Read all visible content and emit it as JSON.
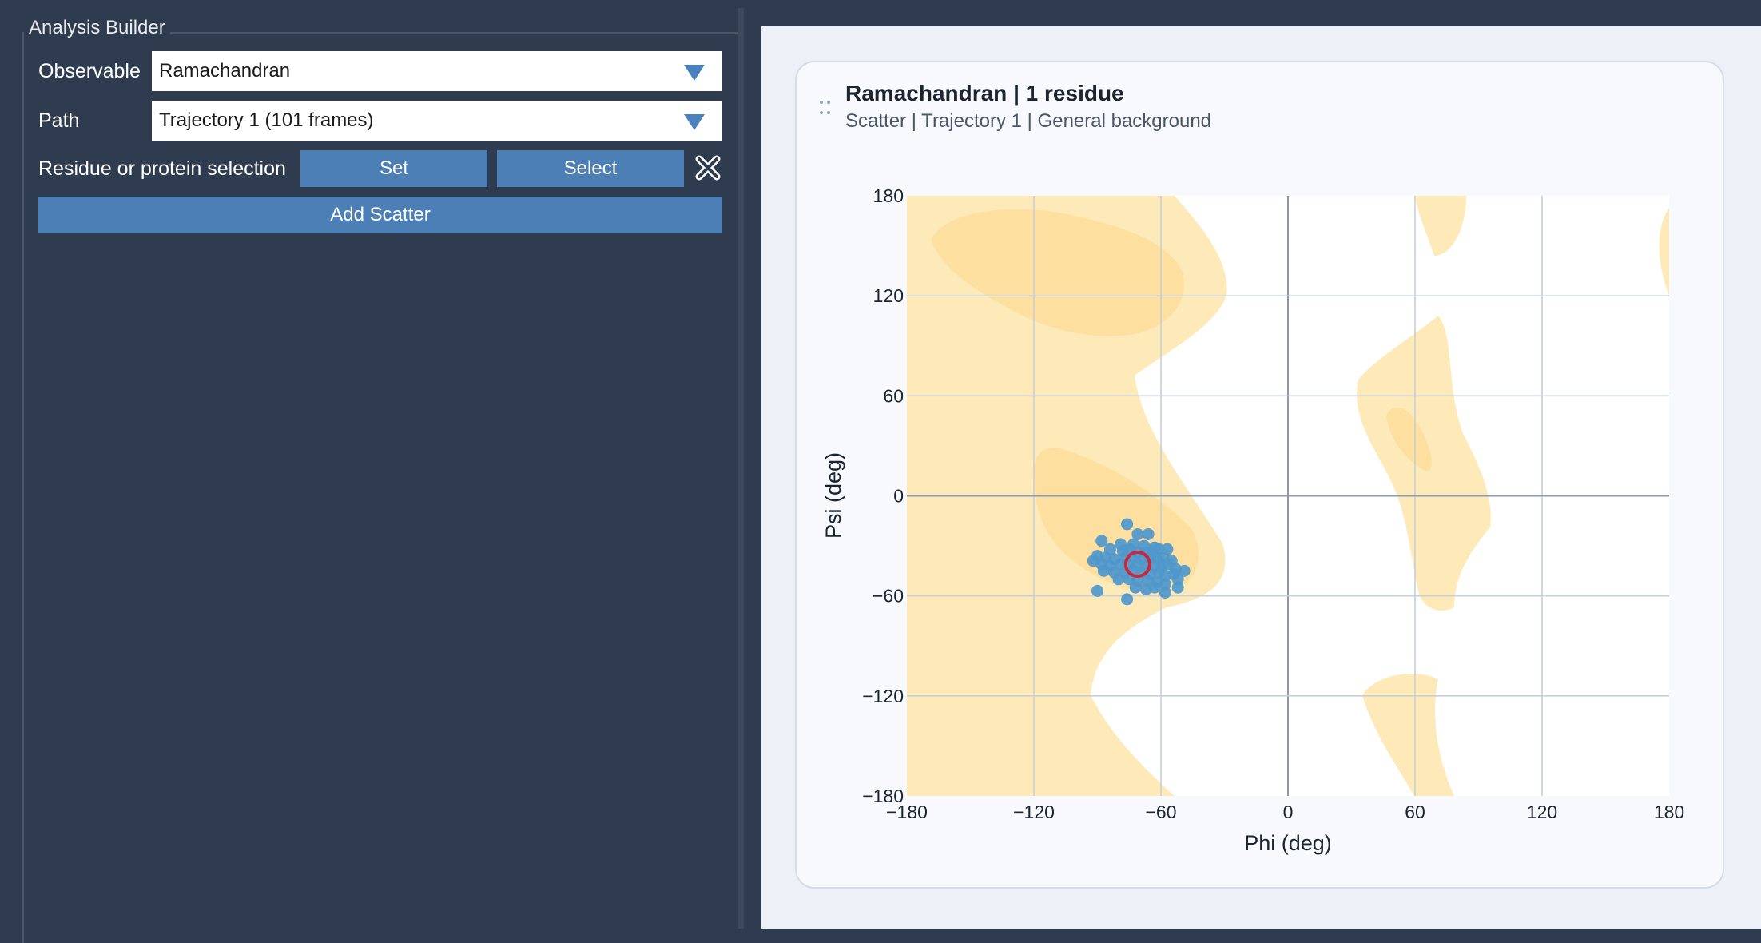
{
  "builder": {
    "legend": "Analysis Builder",
    "observable_label": "Observable",
    "observable_value": "Ramachandran",
    "path_label": "Path",
    "path_value": "Trajectory 1 (101 frames)",
    "selection_label": "Residue or protein selection",
    "set_label": "Set",
    "select_label": "Select",
    "add_label": "Add Scatter"
  },
  "card": {
    "title": "Ramachandran | 1 residue",
    "subtitle": "Scatter | Trajectory 1 | General background"
  },
  "colors": {
    "scatter": "#4f97cc",
    "marker_ring": "#c8283c",
    "bg_light": "#fee9b8",
    "bg_dark": "#fde0a0"
  },
  "chart_data": {
    "type": "scatter",
    "xlabel": "Phi (deg)",
    "ylabel": "Psi (deg)",
    "xlim": [
      -180,
      180
    ],
    "ylim": [
      -180,
      180
    ],
    "xticks": [
      -180,
      -120,
      -60,
      0,
      60,
      120,
      180
    ],
    "yticks": [
      -180,
      -120,
      -60,
      0,
      60,
      120,
      180
    ],
    "xtick_labels": [
      "−180",
      "−120",
      "−60",
      "0",
      "60",
      "120",
      "180"
    ],
    "ytick_labels": [
      "−180",
      "−120",
      "−60",
      "0",
      "60",
      "120",
      "180"
    ],
    "grid": true,
    "points": [
      [
        -76,
        -17
      ],
      [
        -71,
        -23
      ],
      [
        -66,
        -23
      ],
      [
        -88,
        -27
      ],
      [
        -79,
        -29
      ],
      [
        -73,
        -29
      ],
      [
        -68,
        -30
      ],
      [
        -63,
        -31
      ],
      [
        -84,
        -32
      ],
      [
        -78,
        -33
      ],
      [
        -75,
        -32
      ],
      [
        -71,
        -34
      ],
      [
        -67,
        -34
      ],
      [
        -64,
        -33
      ],
      [
        -61,
        -32
      ],
      [
        -57,
        -32
      ],
      [
        -90,
        -36
      ],
      [
        -86,
        -37
      ],
      [
        -82,
        -38
      ],
      [
        -77,
        -37
      ],
      [
        -73,
        -37
      ],
      [
        -69,
        -38
      ],
      [
        -65,
        -37
      ],
      [
        -62,
        -38
      ],
      [
        -59,
        -37
      ],
      [
        -55,
        -39
      ],
      [
        -92,
        -39
      ],
      [
        -88,
        -41
      ],
      [
        -84,
        -42
      ],
      [
        -79,
        -41
      ],
      [
        -75,
        -42
      ],
      [
        -71,
        -41
      ],
      [
        -67,
        -42
      ],
      [
        -63,
        -42
      ],
      [
        -60,
        -43
      ],
      [
        -57,
        -41
      ],
      [
        -53,
        -44
      ],
      [
        -49,
        -45
      ],
      [
        -87,
        -45
      ],
      [
        -82,
        -46
      ],
      [
        -77,
        -46
      ],
      [
        -73,
        -45
      ],
      [
        -69,
        -46
      ],
      [
        -65,
        -47
      ],
      [
        -61,
        -46
      ],
      [
        -58,
        -48
      ],
      [
        -54,
        -47
      ],
      [
        -52,
        -50
      ],
      [
        -80,
        -50
      ],
      [
        -75,
        -50
      ],
      [
        -71,
        -51
      ],
      [
        -66,
        -51
      ],
      [
        -62,
        -52
      ],
      [
        -58,
        -53
      ],
      [
        -72,
        -55
      ],
      [
        -67,
        -56
      ],
      [
        -63,
        -55
      ],
      [
        -90,
        -57
      ],
      [
        -58,
        -58
      ],
      [
        -52,
        -55
      ],
      [
        -76,
        -62
      ]
    ],
    "highlight": [
      -71,
      -41
    ]
  }
}
